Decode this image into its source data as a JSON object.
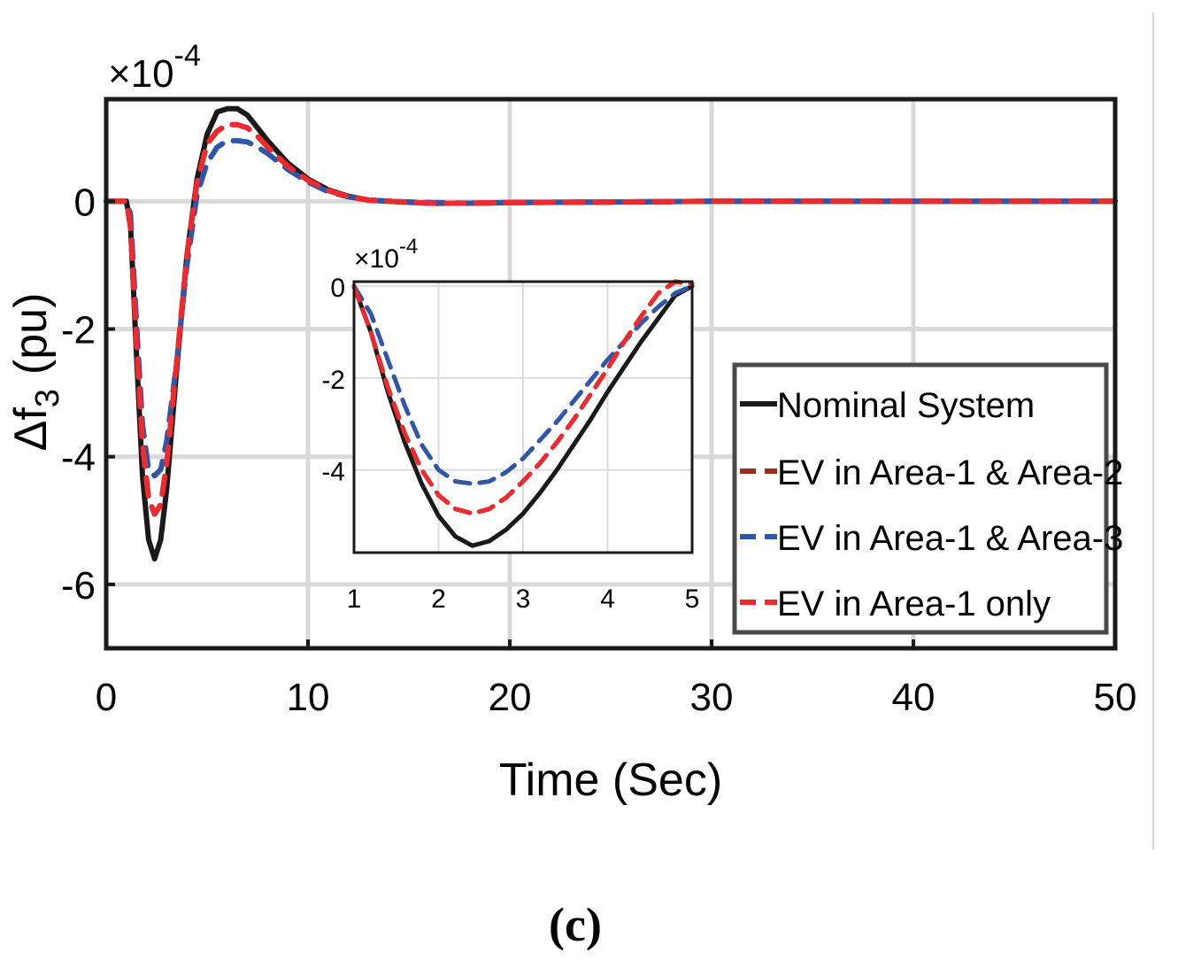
{
  "chart_data": {
    "type": "line",
    "ylabel_prefix": "Δf",
    "ylabel_sub": "3",
    "ylabel_suffix": "(pu)",
    "xlabel": "Time (Sec)",
    "exponent_base": "×10",
    "exponent_power": "-4",
    "xlim": [
      0,
      50
    ],
    "ylim": [
      -7,
      1.6
    ],
    "xticks": [
      0,
      10,
      20,
      30,
      40,
      50
    ],
    "yticks": [
      0,
      -2,
      -4,
      -6
    ],
    "grid": true,
    "legend": {
      "position": "bottom-right",
      "entries": [
        {
          "label": "Nominal System",
          "color": "#1a1a1a",
          "dash": "solid"
        },
        {
          "label": "EV in Area-1 & Area-2",
          "color": "#9b2d1f",
          "dash": "dashed"
        },
        {
          "label": "EV in Area-1 & Area-3",
          "color": "#2f56a8",
          "dash": "dashed"
        },
        {
          "label": "EV in Area-1 only",
          "color": "#ee2a2e",
          "dash": "dashed"
        }
      ]
    },
    "series": [
      {
        "name": "Nominal System",
        "color": "#1a1a1a",
        "x": [
          0,
          1,
          1.2,
          1.5,
          1.8,
          2.1,
          2.4,
          2.7,
          3.0,
          3.5,
          4.0,
          4.5,
          5,
          5.5,
          6,
          6.5,
          7,
          7.5,
          8,
          9,
          10,
          11,
          12,
          13,
          14,
          16,
          18,
          20,
          25,
          30,
          35,
          40,
          45,
          50
        ],
        "y": [
          0,
          0,
          -0.35,
          -2.4,
          -4.3,
          -5.3,
          -5.6,
          -5.3,
          -4.5,
          -2.6,
          -0.85,
          0.35,
          1.05,
          1.4,
          1.45,
          1.45,
          1.35,
          1.15,
          0.95,
          0.6,
          0.35,
          0.18,
          0.08,
          0.02,
          0.0,
          -0.03,
          -0.03,
          -0.02,
          -0.01,
          0.0,
          0.0,
          0.0,
          0.0,
          0.0
        ]
      },
      {
        "name": "EV in Area-1 & Area-2",
        "color": "#9b2d1f",
        "x": [
          0,
          1,
          1.2,
          1.5,
          1.8,
          2.1,
          2.4,
          2.7,
          3.0,
          3.5,
          4.0,
          4.5,
          5,
          5.5,
          6,
          6.5,
          7,
          7.5,
          8,
          9,
          10,
          11,
          12,
          13,
          14,
          16,
          18,
          20,
          25,
          30,
          35,
          40,
          45,
          50
        ],
        "y": [
          0,
          0,
          -0.4,
          -2.2,
          -3.8,
          -4.65,
          -4.9,
          -4.75,
          -4.1,
          -2.5,
          -0.85,
          0.3,
          0.9,
          1.1,
          1.2,
          1.2,
          1.15,
          1.02,
          0.85,
          0.55,
          0.33,
          0.17,
          0.07,
          0.02,
          0.0,
          -0.03,
          -0.03,
          -0.02,
          -0.01,
          0.0,
          0.0,
          0.0,
          0.0,
          0.0
        ]
      },
      {
        "name": "EV in Area-1 & Area-3",
        "color": "#2f56a8",
        "x": [
          0,
          1,
          1.2,
          1.5,
          1.8,
          2.1,
          2.4,
          2.7,
          3.0,
          3.5,
          4.0,
          4.5,
          5,
          5.5,
          6,
          6.5,
          7,
          7.5,
          8,
          9,
          10,
          11,
          12,
          13,
          14,
          16,
          18,
          20,
          25,
          30,
          35,
          40,
          45,
          50
        ],
        "y": [
          0,
          0,
          -0.2,
          -1.9,
          -3.5,
          -4.2,
          -4.3,
          -4.2,
          -3.75,
          -2.5,
          -1.0,
          0.1,
          0.6,
          0.85,
          0.95,
          0.95,
          0.93,
          0.85,
          0.75,
          0.5,
          0.3,
          0.15,
          0.07,
          0.02,
          0.0,
          -0.02,
          -0.03,
          -0.02,
          -0.01,
          0.0,
          0.0,
          0.0,
          0.0,
          0.0
        ]
      },
      {
        "name": "EV in Area-1 only",
        "color": "#ee2a2e",
        "x": [
          0,
          1,
          1.2,
          1.5,
          1.8,
          2.1,
          2.4,
          2.7,
          3.0,
          3.5,
          4.0,
          4.5,
          5,
          5.5,
          6,
          6.5,
          7,
          7.5,
          8,
          9,
          10,
          11,
          12,
          13,
          14,
          16,
          18,
          20,
          25,
          30,
          35,
          40,
          45,
          50
        ],
        "y": [
          0,
          0,
          -0.4,
          -2.2,
          -3.8,
          -4.65,
          -4.9,
          -4.75,
          -4.1,
          -2.5,
          -0.85,
          0.3,
          0.9,
          1.1,
          1.2,
          1.2,
          1.15,
          1.02,
          0.85,
          0.55,
          0.33,
          0.17,
          0.07,
          0.02,
          0.0,
          -0.03,
          -0.03,
          -0.02,
          -0.01,
          0.0,
          0.0,
          0.0,
          0.0,
          0.0
        ]
      }
    ],
    "inset": {
      "xlim": [
        1,
        5
      ],
      "ylim": [
        -5.8,
        0.1
      ],
      "xticks": [
        1,
        2,
        3,
        4,
        5
      ],
      "yticks": [
        0,
        -2,
        -4
      ],
      "exponent_base": "×10",
      "exponent_power": "-4",
      "series": [
        {
          "name": "Nominal System",
          "color": "#1a1a1a",
          "x": [
            1.0,
            1.2,
            1.4,
            1.6,
            1.8,
            2.0,
            2.2,
            2.4,
            2.6,
            2.8,
            3.0,
            3.2,
            3.4,
            3.6,
            3.8,
            4.0,
            4.2,
            4.4,
            4.6,
            4.8,
            5.0
          ],
          "y": [
            0,
            -1.0,
            -2.3,
            -3.4,
            -4.3,
            -5.0,
            -5.45,
            -5.65,
            -5.55,
            -5.3,
            -4.95,
            -4.5,
            -4.0,
            -3.45,
            -2.9,
            -2.3,
            -1.75,
            -1.2,
            -0.7,
            -0.2,
            0.0
          ]
        },
        {
          "name": "EV in Area-1 & Area-2",
          "color": "#9b2d1f",
          "x": [
            1.0,
            1.2,
            1.4,
            1.6,
            1.8,
            2.0,
            2.2,
            2.4,
            2.6,
            2.8,
            3.0,
            3.2,
            3.4,
            3.6,
            3.8,
            4.0,
            4.2,
            4.4,
            4.6,
            4.8,
            5.0
          ],
          "y": [
            0,
            -1.0,
            -2.2,
            -3.2,
            -4.0,
            -4.55,
            -4.85,
            -4.95,
            -4.85,
            -4.6,
            -4.25,
            -3.85,
            -3.4,
            -2.9,
            -2.35,
            -1.8,
            -1.2,
            -0.65,
            -0.15,
            0.1,
            0.05
          ]
        },
        {
          "name": "EV in Area-1 & Area-3",
          "color": "#2f56a8",
          "x": [
            1.0,
            1.2,
            1.4,
            1.6,
            1.8,
            2.0,
            2.2,
            2.4,
            2.6,
            2.8,
            3.0,
            3.2,
            3.4,
            3.6,
            3.8,
            4.0,
            4.2,
            4.4,
            4.6,
            4.8,
            5.0
          ],
          "y": [
            0,
            -0.6,
            -1.6,
            -2.6,
            -3.45,
            -4.0,
            -4.25,
            -4.3,
            -4.25,
            -4.05,
            -3.75,
            -3.35,
            -2.95,
            -2.5,
            -2.05,
            -1.6,
            -1.2,
            -0.8,
            -0.45,
            -0.15,
            0.0
          ]
        },
        {
          "name": "EV in Area-1 only",
          "color": "#ee2a2e",
          "x": [
            1.0,
            1.2,
            1.4,
            1.6,
            1.8,
            2.0,
            2.2,
            2.4,
            2.6,
            2.8,
            3.0,
            3.2,
            3.4,
            3.6,
            3.8,
            4.0,
            4.2,
            4.4,
            4.6,
            4.8,
            5.0
          ],
          "y": [
            0,
            -1.0,
            -2.2,
            -3.2,
            -4.0,
            -4.55,
            -4.85,
            -4.95,
            -4.85,
            -4.6,
            -4.25,
            -3.85,
            -3.4,
            -2.9,
            -2.35,
            -1.8,
            -1.2,
            -0.65,
            -0.15,
            0.1,
            0.05
          ]
        }
      ]
    }
  },
  "caption": "(c)"
}
